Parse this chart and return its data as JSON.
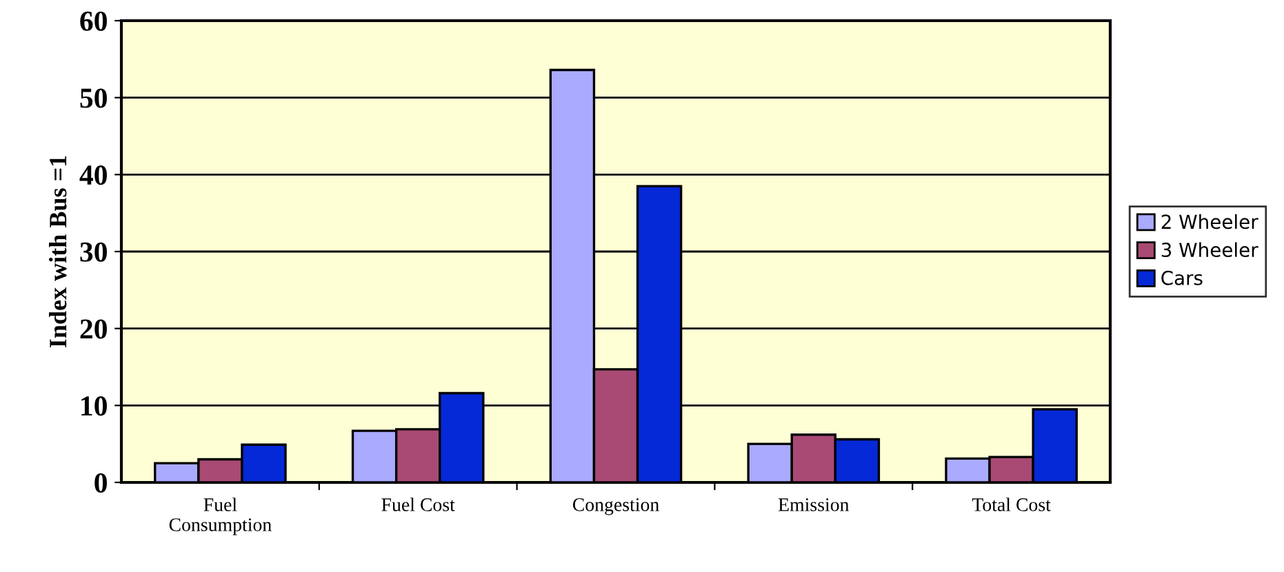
{
  "chart_data": {
    "type": "bar",
    "ylabel": "Index with Bus =1",
    "categories": [
      "Fuel\nConsumption",
      "Fuel Cost",
      "Congestion",
      "Emission",
      "Total Cost"
    ],
    "series": [
      {
        "name": "2 Wheeler",
        "color": "#aaaaff",
        "values": [
          2.5,
          6.7,
          53.6,
          5.0,
          3.1
        ]
      },
      {
        "name": "3 Wheeler",
        "color": "#a84a74",
        "values": [
          3.0,
          6.9,
          14.7,
          6.2,
          3.3
        ]
      },
      {
        "name": "Cars",
        "color": "#0529d6",
        "values": [
          4.9,
          11.6,
          38.5,
          5.6,
          9.5
        ]
      }
    ],
    "ylim": [
      0,
      60
    ],
    "yticks": [
      0,
      10,
      20,
      30,
      40,
      50,
      60
    ],
    "grid": "y",
    "legend": "right"
  }
}
